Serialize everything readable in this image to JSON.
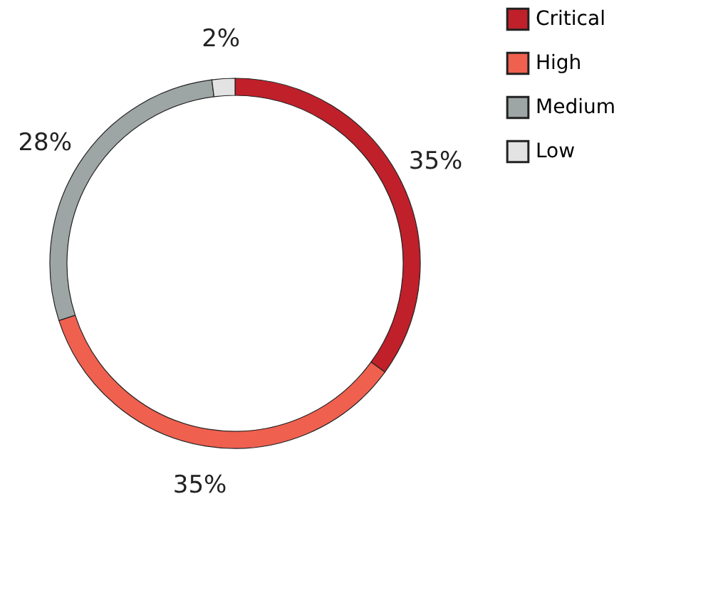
{
  "chart_data": {
    "type": "donut",
    "categories": [
      "Critical",
      "High",
      "Medium",
      "Low"
    ],
    "values": [
      35,
      35,
      28,
      2
    ],
    "colors": [
      "#c0202a",
      "#f0604f",
      "#9ea5a5",
      "#e3e3e3"
    ],
    "value_labels": [
      "35%",
      "35%",
      "28%",
      "2%"
    ],
    "legend": "right"
  }
}
